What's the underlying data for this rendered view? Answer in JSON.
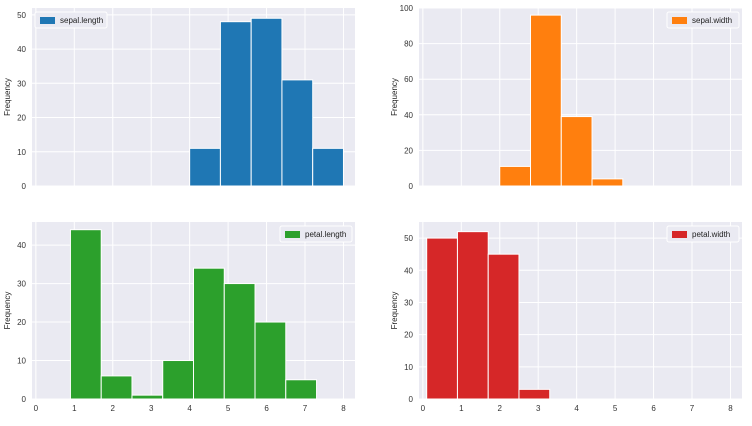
{
  "chart_data": [
    {
      "type": "bar",
      "kind": "histogram",
      "series_name": "sepal.length",
      "color": "#1f77b4",
      "ylabel": "Frequency",
      "xlim": [
        -0.1,
        8.3
      ],
      "ylim": [
        0,
        52
      ],
      "xticks": [],
      "yticks": [
        0,
        10,
        20,
        30,
        40,
        50
      ],
      "grid": true,
      "legend": "top-left",
      "bins": [
        {
          "x0": 4.0,
          "x1": 4.8,
          "count": 11
        },
        {
          "x0": 4.8,
          "x1": 5.6,
          "count": 48
        },
        {
          "x0": 5.6,
          "x1": 6.4,
          "count": 49
        },
        {
          "x0": 6.4,
          "x1": 7.2,
          "count": 31
        },
        {
          "x0": 7.2,
          "x1": 8.0,
          "count": 11
        }
      ]
    },
    {
      "type": "bar",
      "kind": "histogram",
      "series_name": "sepal.width",
      "color": "#ff7f0e",
      "ylabel": "Frequency",
      "xlim": [
        -0.1,
        8.3
      ],
      "ylim": [
        0,
        100
      ],
      "xticks": [],
      "yticks": [
        0,
        20,
        40,
        60,
        80,
        100
      ],
      "grid": true,
      "legend": "top-right",
      "bins": [
        {
          "x0": 2.0,
          "x1": 2.8,
          "count": 11
        },
        {
          "x0": 2.8,
          "x1": 3.6,
          "count": 96
        },
        {
          "x0": 3.6,
          "x1": 4.4,
          "count": 39
        },
        {
          "x0": 4.4,
          "x1": 5.2,
          "count": 4
        }
      ]
    },
    {
      "type": "bar",
      "kind": "histogram",
      "series_name": "petal.length",
      "color": "#2ca02c",
      "ylabel": "Frequency",
      "xlim": [
        -0.1,
        8.3
      ],
      "ylim": [
        0,
        46
      ],
      "xticks": [
        0,
        1,
        2,
        3,
        4,
        5,
        6,
        7,
        8
      ],
      "yticks": [
        0,
        10,
        20,
        30,
        40
      ],
      "grid": true,
      "legend": "top-right",
      "bins": [
        {
          "x0": 0.9,
          "x1": 1.7,
          "count": 44
        },
        {
          "x0": 1.7,
          "x1": 2.5,
          "count": 6
        },
        {
          "x0": 2.5,
          "x1": 3.3,
          "count": 1
        },
        {
          "x0": 3.3,
          "x1": 4.1,
          "count": 10
        },
        {
          "x0": 4.1,
          "x1": 4.9,
          "count": 34
        },
        {
          "x0": 4.9,
          "x1": 5.7,
          "count": 30
        },
        {
          "x0": 5.7,
          "x1": 6.5,
          "count": 20
        },
        {
          "x0": 6.5,
          "x1": 7.3,
          "count": 5
        }
      ]
    },
    {
      "type": "bar",
      "kind": "histogram",
      "series_name": "petal.width",
      "color": "#d62728",
      "ylabel": "Frequency",
      "xlim": [
        -0.1,
        8.3
      ],
      "ylim": [
        0,
        55
      ],
      "xticks": [
        0,
        1,
        2,
        3,
        4,
        5,
        6,
        7,
        8
      ],
      "yticks": [
        0,
        10,
        20,
        30,
        40,
        50
      ],
      "grid": true,
      "legend": "top-right",
      "bins": [
        {
          "x0": 0.1,
          "x1": 0.9,
          "count": 50
        },
        {
          "x0": 0.9,
          "x1": 1.7,
          "count": 52
        },
        {
          "x0": 1.7,
          "x1": 2.5,
          "count": 45
        },
        {
          "x0": 2.5,
          "x1": 3.3,
          "count": 3
        }
      ]
    }
  ]
}
